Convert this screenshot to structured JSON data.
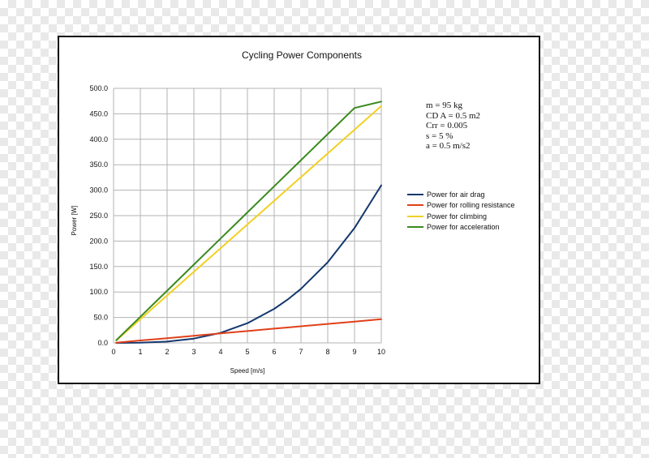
{
  "chart_data": {
    "type": "line",
    "title": "Cycling Power Components",
    "xlabel": "Speed [m/s]",
    "ylabel": "Power [W]",
    "xlim": [
      0,
      10
    ],
    "ylim": [
      0,
      500
    ],
    "x_ticks": [
      "0",
      "1",
      "2",
      "3",
      "4",
      "5",
      "6",
      "7",
      "8",
      "9",
      "10"
    ],
    "y_ticks": [
      "0.0",
      "50.0",
      "100.0",
      "150.0",
      "200.0",
      "250.0",
      "300.0",
      "350.0",
      "400.0",
      "450.0",
      "500.0"
    ],
    "grid": true,
    "legend_position": "right",
    "x": [
      0.1,
      1,
      2,
      3,
      4,
      5,
      6,
      6.5,
      7,
      8,
      9,
      10
    ],
    "series": [
      {
        "name": "Power for air drag",
        "color": "#14386e",
        "values": [
          0.0,
          0.3,
          2.5,
          8.4,
          19.8,
          38.7,
          66.9,
          85.0,
          106.2,
          158.5,
          225.7,
          309.6
        ]
      },
      {
        "name": "Power for rolling resistance",
        "color": "#e0401a",
        "values": [
          0.5,
          4.7,
          9.3,
          14.0,
          18.6,
          23.3,
          28.0,
          30.3,
          32.6,
          37.3,
          41.9,
          46.6
        ]
      },
      {
        "name": "Power for climbing",
        "color": "#f2d024",
        "values": [
          4.7,
          46.6,
          93.1,
          139.6,
          186.2,
          232.7,
          279.2,
          302.5,
          325.7,
          372.3,
          418.8,
          465.3
        ]
      },
      {
        "name": "Power for acceleration",
        "color": "#3a8a1e",
        "values": [
          5.2,
          51.3,
          102.6,
          153.8,
          205.1,
          256.4,
          307.7,
          333.3,
          358.9,
          410.2,
          461.5,
          474.0
        ]
      }
    ],
    "annotation_lines": [
      "m = 95 kg",
      "CD A = 0.5 m2",
      "Crr = 0.005",
      "s = 5 %",
      "a = 0.5 m/s2"
    ]
  }
}
